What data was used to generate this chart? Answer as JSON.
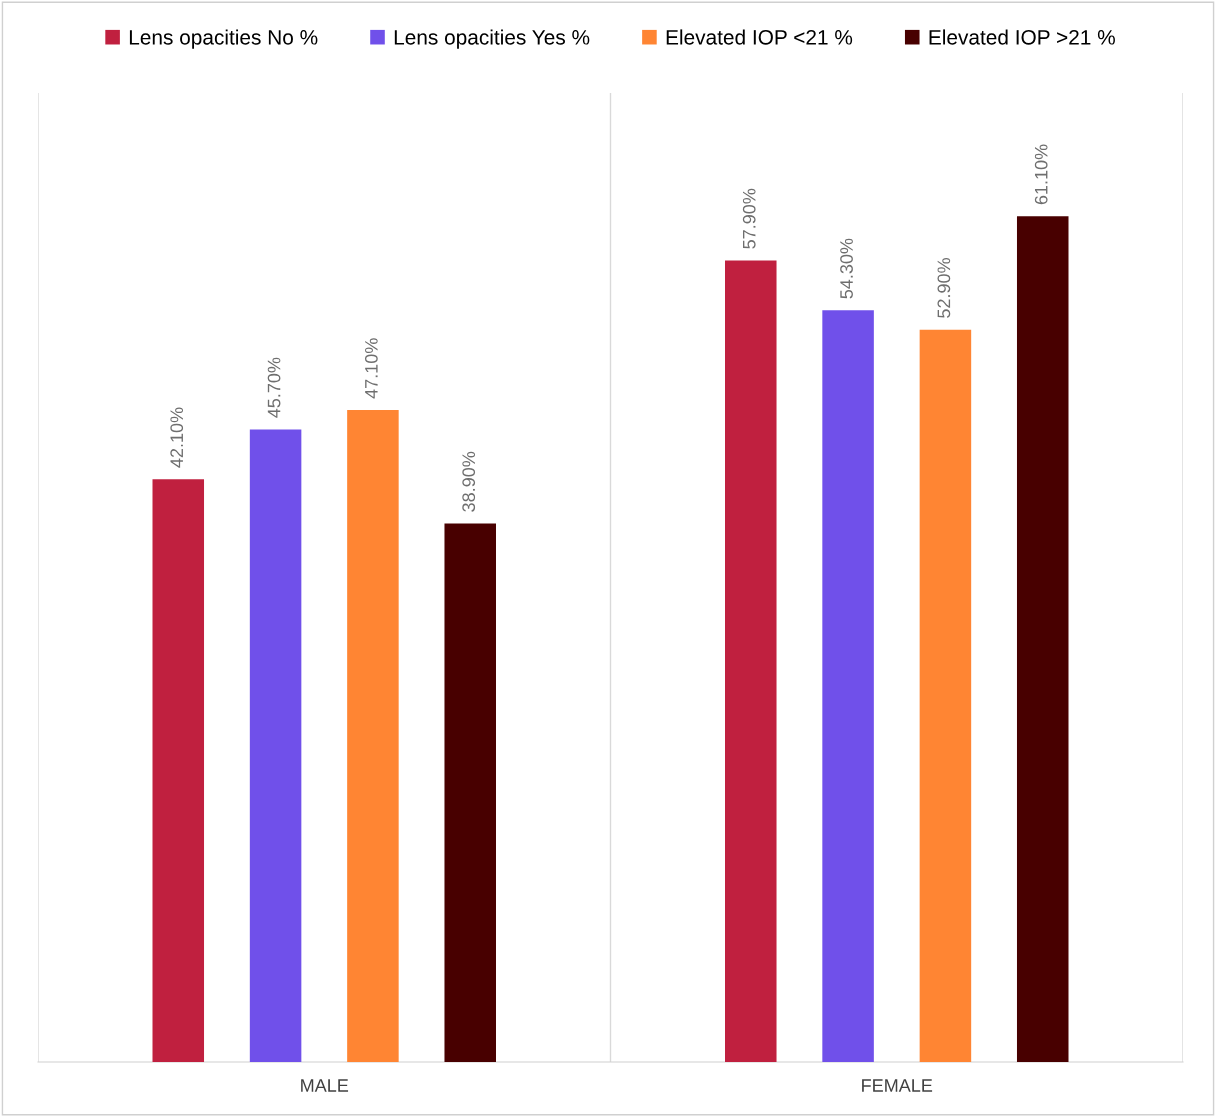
{
  "chart_data": {
    "type": "bar",
    "categories": [
      "MALE",
      "FEMALE"
    ],
    "series": [
      {
        "name": "Lens opacities No %",
        "color": "#c0203f",
        "values": [
          42.1,
          57.9
        ],
        "value_labels": [
          "42.10%",
          "57.90%"
        ]
      },
      {
        "name": "Lens opacities Yes %",
        "color": "#7050ea",
        "values": [
          45.7,
          54.3
        ],
        "value_labels": [
          "45.70%",
          "54.30%"
        ]
      },
      {
        "name": "Elevated IOP <21 %",
        "color": "#ff8533",
        "values": [
          47.1,
          52.9
        ],
        "value_labels": [
          "47.10%",
          "52.90%"
        ]
      },
      {
        "name": "Elevated IOP >21 %",
        "color": "#480000",
        "values": [
          38.9,
          61.1
        ],
        "value_labels": [
          "38.90%",
          "61.10%"
        ]
      }
    ],
    "ylim": [
      0,
      70
    ],
    "tick_labels": "x",
    "grid": "x",
    "legend": "top"
  }
}
